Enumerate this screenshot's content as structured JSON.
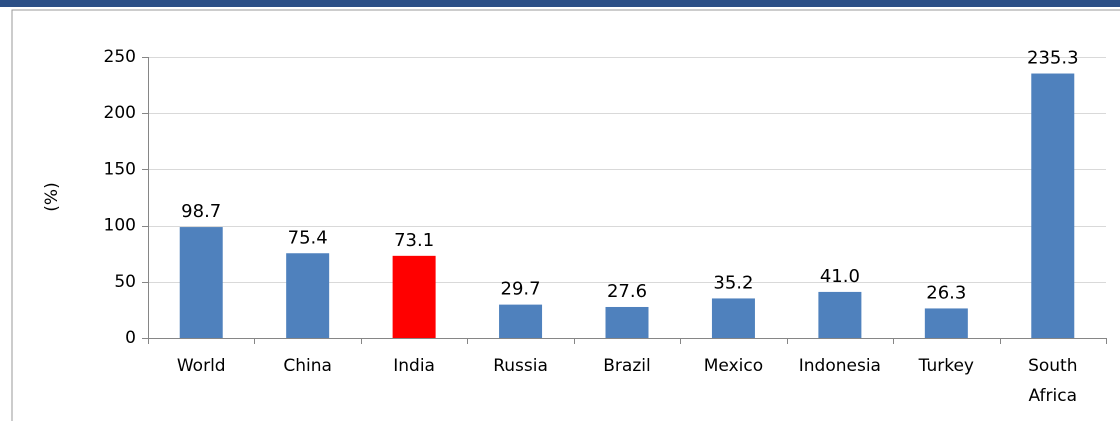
{
  "theme": {
    "header_band_color": "#2b4f86",
    "frame_border_color": "#9a9a9a",
    "bar_color": "#4f81bd",
    "highlight_color": "#ff0000"
  },
  "chart_data": {
    "type": "bar",
    "title": "",
    "xlabel": "",
    "ylabel": "(%)",
    "ylim": [
      0,
      250
    ],
    "yticks": [
      0,
      50,
      100,
      150,
      200,
      250
    ],
    "ytick_labels": [
      "0",
      "50",
      "100",
      "150",
      "200",
      "250"
    ],
    "grid": true,
    "legend": "none",
    "categories": [
      {
        "label": "World",
        "label_lines": [
          "World"
        ]
      },
      {
        "label": "China",
        "label_lines": [
          "China"
        ]
      },
      {
        "label": "India",
        "label_lines": [
          "India"
        ]
      },
      {
        "label": "Russia",
        "label_lines": [
          "Russia"
        ]
      },
      {
        "label": "Brazil",
        "label_lines": [
          "Brazil"
        ]
      },
      {
        "label": "Mexico",
        "label_lines": [
          "Mexico"
        ]
      },
      {
        "label": "Indonesia",
        "label_lines": [
          "Indonesia"
        ]
      },
      {
        "label": "Turkey",
        "label_lines": [
          "Turkey"
        ]
      },
      {
        "label": "South Africa",
        "label_lines": [
          "South",
          "Africa"
        ]
      }
    ],
    "values": [
      98.7,
      75.4,
      73.1,
      29.7,
      27.6,
      35.2,
      41.0,
      26.3,
      235.3
    ],
    "value_labels": [
      "98.7",
      "75.4",
      "73.1",
      "29.7",
      "27.6",
      "35.2",
      "41.0",
      "26.3",
      "235.3"
    ],
    "highlight": "India"
  }
}
